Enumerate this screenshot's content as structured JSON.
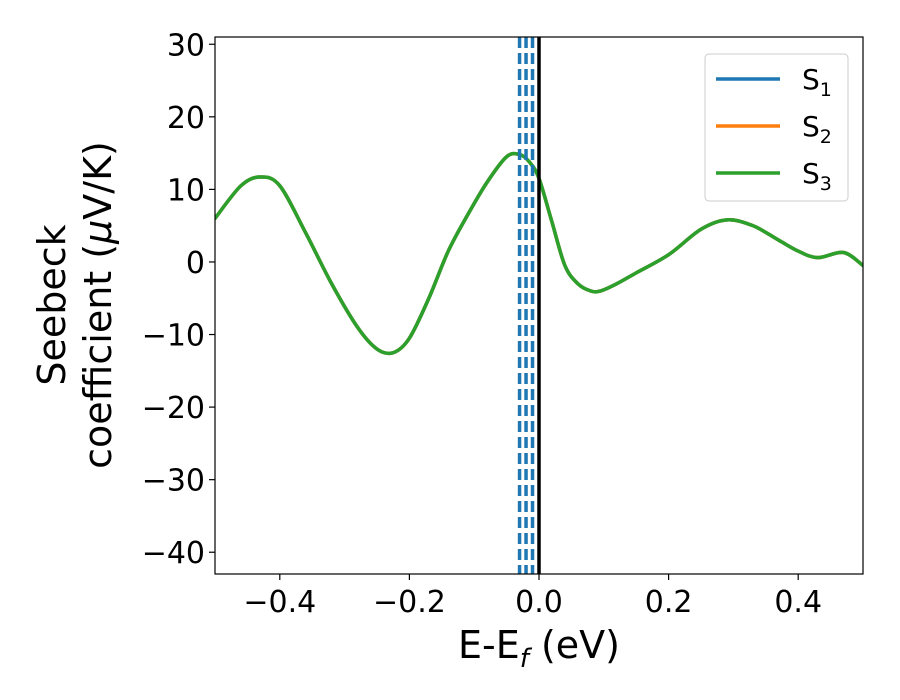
{
  "chart_data": {
    "type": "line",
    "xlabel": {
      "main": "E-E",
      "sub": "f",
      "unit": " (eV)"
    },
    "ylabel": {
      "line1": "Seebeck",
      "line2": "coefficient  (",
      "mu": "μ",
      "line2_end": "V/K)"
    },
    "xlim": [
      -0.5,
      0.5
    ],
    "ylim": [
      -43,
      31
    ],
    "xticks": [
      -0.4,
      -0.2,
      0.0,
      0.2,
      0.4
    ],
    "xtick_labels": [
      "−0.4",
      "−0.2",
      "0.0",
      "0.2",
      "0.4"
    ],
    "yticks": [
      -40,
      -30,
      -20,
      -10,
      0,
      10,
      20,
      30
    ],
    "ytick_labels": [
      "−40",
      "−30",
      "−20",
      "−10",
      "0",
      "10",
      "20",
      "30"
    ],
    "grid": false,
    "legend_position": "top-right",
    "series": [
      {
        "name": "S",
        "sub": "1",
        "color": "#1f77b4",
        "x": [
          -0.5,
          -0.46,
          -0.43,
          -0.4,
          -0.36,
          -0.32,
          -0.28,
          -0.25,
          -0.225,
          -0.2,
          -0.17,
          -0.14,
          -0.11,
          -0.08,
          -0.05,
          -0.03,
          -0.015,
          0.0,
          0.02,
          0.04,
          0.06,
          0.08,
          0.095,
          0.12,
          0.15,
          0.2,
          0.25,
          0.29,
          0.33,
          0.37,
          0.4,
          0.43,
          0.47,
          0.5
        ],
        "y": [
          6,
          10.5,
          11.7,
          10.5,
          4,
          -3,
          -9,
          -12,
          -12.5,
          -10.5,
          -5,
          1.5,
          6.5,
          11,
          14.5,
          14.8,
          13.8,
          11.5,
          5.5,
          -0.5,
          -3,
          -4,
          -4,
          -3,
          -1.5,
          1,
          4.5,
          5.8,
          5,
          3,
          1.5,
          0.6,
          1.3,
          -0.5
        ]
      },
      {
        "name": "S",
        "sub": "2",
        "color": "#ff7f0e",
        "x": [
          -0.5,
          -0.46,
          -0.43,
          -0.4,
          -0.36,
          -0.32,
          -0.28,
          -0.25,
          -0.225,
          -0.2,
          -0.17,
          -0.14,
          -0.11,
          -0.08,
          -0.05,
          -0.03,
          -0.015,
          0.0,
          0.02,
          0.04,
          0.06,
          0.08,
          0.095,
          0.12,
          0.15,
          0.2,
          0.25,
          0.29,
          0.33,
          0.37,
          0.4,
          0.43,
          0.47,
          0.5
        ],
        "y": [
          6,
          10.5,
          11.7,
          10.5,
          4,
          -3,
          -9,
          -12,
          -12.5,
          -10.5,
          -5,
          1.5,
          6.5,
          11,
          14.5,
          14.8,
          13.8,
          11.5,
          5.5,
          -0.5,
          -3,
          -4,
          -4,
          -3,
          -1.5,
          1,
          4.5,
          5.8,
          5,
          3,
          1.5,
          0.6,
          1.3,
          -0.5
        ]
      },
      {
        "name": "S",
        "sub": "3",
        "color": "#2ca02c",
        "x": [
          -0.5,
          -0.46,
          -0.43,
          -0.4,
          -0.36,
          -0.32,
          -0.28,
          -0.25,
          -0.225,
          -0.2,
          -0.17,
          -0.14,
          -0.11,
          -0.08,
          -0.05,
          -0.03,
          -0.015,
          0.0,
          0.02,
          0.04,
          0.06,
          0.08,
          0.095,
          0.12,
          0.15,
          0.2,
          0.25,
          0.29,
          0.33,
          0.37,
          0.4,
          0.43,
          0.47,
          0.5
        ],
        "y": [
          6,
          10.5,
          11.7,
          10.5,
          4,
          -3,
          -9,
          -12,
          -12.5,
          -10.5,
          -5,
          1.5,
          6.5,
          11,
          14.5,
          14.8,
          13.8,
          11.5,
          5.5,
          -0.5,
          -3,
          -4,
          -4,
          -3,
          -1.5,
          1,
          4.5,
          5.8,
          5,
          3,
          1.5,
          0.6,
          1.3,
          -0.5
        ]
      }
    ],
    "vlines": [
      {
        "x": -0.03,
        "style": "dashed",
        "color": "#1f77b4"
      },
      {
        "x": -0.02,
        "style": "dashed",
        "color": "#1f77b4"
      },
      {
        "x": -0.01,
        "style": "dashed",
        "color": "#1f77b4"
      },
      {
        "x": 0.0,
        "style": "solid",
        "color": "#000000"
      }
    ]
  }
}
